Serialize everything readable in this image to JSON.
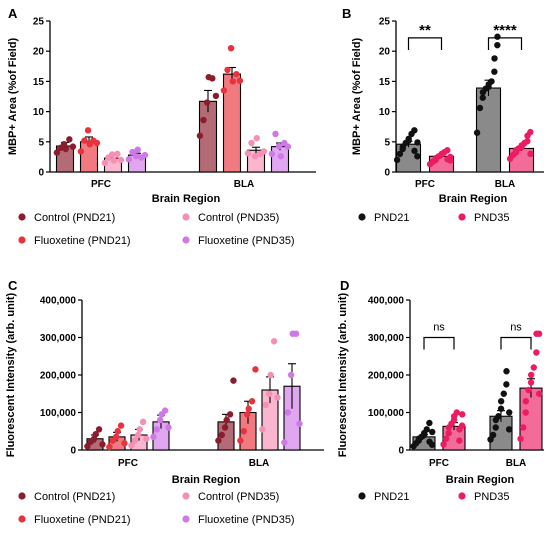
{
  "colors": {
    "control_pnd21": "#8b1c2c",
    "fluoxetine_pnd21": "#e8323c",
    "control_pnd35": "#f58fb3",
    "fluoxetine_pnd35": "#cf78e8",
    "pnd21": "#111111",
    "pnd35": "#ec1b62"
  },
  "chart_data": [
    {
      "panel": "A",
      "type": "bar",
      "categories": [
        "PFC",
        "BLA"
      ],
      "xlabel": "Brain Region",
      "ylabel": "MBP+ Area (%of Field)",
      "ylim": [
        0,
        25
      ],
      "yticks": [
        "0",
        "5",
        "10",
        "15",
        "20",
        "25"
      ],
      "series": [
        {
          "name": "Control (PND21)",
          "color_key": "control_pnd21",
          "values": [
            4.3,
            11.7
          ],
          "sem": [
            0.6,
            1.8
          ],
          "points": [
            [
              3.2,
              4.0,
              4.6,
              3.8,
              5.4,
              4.2
            ],
            [
              6.0,
              8.6,
              11.5,
              15.7,
              15.5,
              12.6
            ]
          ]
        },
        {
          "name": "Fluoxetine (PND21)",
          "color_key": "fluoxetine_pnd21",
          "values": [
            5.0,
            16.2
          ],
          "sem": [
            0.8,
            1.1
          ],
          "points": [
            [
              3.4,
              5.2,
              6.9,
              4.6,
              5.2,
              4.8
            ],
            [
              13.5,
              16.9,
              20.5,
              15.0,
              16.2,
              15.1
            ]
          ]
        },
        {
          "name": "Control (PND35)",
          "color_key": "control_pnd35",
          "values": [
            2.3,
            3.6
          ],
          "sem": [
            0.4,
            0.5
          ],
          "points": [
            [
              1.5,
              2.4,
              2.9,
              1.9,
              3.0,
              2.0
            ],
            [
              3.1,
              4.8,
              2.6,
              5.6,
              3.0,
              3.4
            ]
          ]
        },
        {
          "name": "Fluoxetine (PND35)",
          "color_key": "fluoxetine_pnd35",
          "values": [
            2.8,
            4.2
          ],
          "sem": [
            0.3,
            0.6
          ],
          "points": [
            [
              2.1,
              3.3,
              2.6,
              3.7,
              2.4,
              2.8
            ],
            [
              3.0,
              6.3,
              4.3,
              2.6,
              4.8,
              4.2
            ]
          ]
        }
      ]
    },
    {
      "panel": "B",
      "type": "bar",
      "categories": [
        "PFC",
        "BLA"
      ],
      "xlabel": "Brain Region",
      "ylabel": "MBP+ Area (%of Field)",
      "ylim": [
        0,
        25
      ],
      "yticks": [
        "0",
        "5",
        "10",
        "15",
        "20",
        "25"
      ],
      "series": [
        {
          "name": "PND21",
          "color_key": "pnd21",
          "values": [
            4.6,
            13.9
          ],
          "sem": [
            0.5,
            1.3
          ],
          "points": [
            [
              2.0,
              3.0,
              3.8,
              4.2,
              4.8,
              5.2,
              5.5,
              6.3,
              6.9,
              3.5,
              2.6,
              4.9
            ],
            [
              6.5,
              10.6,
              12.3,
              13.2,
              13.8,
              14.1,
              14.5,
              15.0,
              16.6,
              18.8,
              21.0,
              22.4
            ]
          ]
        },
        {
          "name": "PND35",
          "color_key": "pnd35",
          "values": [
            2.6,
            3.9
          ],
          "sem": [
            0.3,
            0.4
          ],
          "points": [
            [
              1.3,
              1.7,
              2.0,
              2.3,
              2.6,
              2.9,
              3.0,
              3.3,
              3.6,
              2.1,
              2.5,
              1.9
            ],
            [
              2.2,
              2.8,
              3.2,
              3.6,
              3.9,
              4.1,
              4.4,
              4.8,
              5.1,
              6.0,
              6.6,
              3.0
            ]
          ]
        }
      ],
      "annotations": [
        {
          "category_index": 0,
          "text": "**",
          "y": 22.2
        },
        {
          "category_index": 1,
          "text": "****",
          "y": 22.2
        }
      ]
    },
    {
      "panel": "C",
      "type": "bar",
      "categories": [
        "PFC",
        "BLA"
      ],
      "xlabel": "Brain Region",
      "ylabel": "Fluorescent Intensity (arb. unit)",
      "ylim": [
        0,
        400000
      ],
      "yticks": [
        "0",
        "100,000",
        "200,000",
        "300,000",
        "400,000"
      ],
      "series": [
        {
          "name": "Control (PND21)",
          "color_key": "control_pnd21",
          "values": [
            30000,
            75000
          ],
          "sem": [
            10000,
            20000
          ],
          "points": [
            [
              10000,
              22000,
              30000,
              42000,
              55000,
              15000
            ],
            [
              25000,
              40000,
              60000,
              80000,
              95000,
              185000
            ]
          ]
        },
        {
          "name": "Fluoxetine (PND21)",
          "color_key": "fluoxetine_pnd21",
          "values": [
            35000,
            100000
          ],
          "sem": [
            12000,
            30000
          ],
          "points": [
            [
              8000,
              25000,
              35000,
              50000,
              65000,
              18000
            ],
            [
              25000,
              50000,
              95000,
              110000,
              130000,
              215000
            ]
          ]
        },
        {
          "name": "Control (PND35)",
          "color_key": "control_pnd35",
          "values": [
            40000,
            160000
          ],
          "sem": [
            15000,
            35000
          ],
          "points": [
            [
              12000,
              25000,
              40000,
              55000,
              75000,
              30000
            ],
            [
              55000,
              120000,
              150000,
              200000,
              290000,
              140000
            ]
          ]
        },
        {
          "name": "Fluoxetine (PND35)",
          "color_key": "fluoxetine_pnd35",
          "values": [
            75000,
            170000
          ],
          "sem": [
            18000,
            60000
          ],
          "points": [
            [
              35000,
              55000,
              80000,
              95000,
              105000,
              60000
            ],
            [
              20000,
              100000,
              200000,
              310000,
              310000,
              70000
            ]
          ]
        }
      ]
    },
    {
      "panel": "D",
      "type": "bar",
      "categories": [
        "PFC",
        "BLA"
      ],
      "xlabel": "Brain Region",
      "ylabel": "Fluorescent Intensity (arb. unit)",
      "ylim": [
        0,
        400000
      ],
      "yticks": [
        "0",
        "100,000",
        "200,000",
        "300,000",
        "400,000"
      ],
      "series": [
        {
          "name": "PND21",
          "color_key": "pnd21",
          "values": [
            35000,
            90000
          ],
          "sem": [
            6000,
            15000
          ],
          "points": [
            [
              10000,
              18000,
              25000,
              30000,
              35000,
              40000,
              45000,
              55000,
              72000,
              22000,
              14000,
              48000
            ],
            [
              28000,
              40000,
              60000,
              80000,
              90000,
              110000,
              130000,
              150000,
              175000,
              210000,
              55000,
              100000
            ]
          ]
        },
        {
          "name": "PND35",
          "color_key": "pnd35",
          "values": [
            63000,
            165000
          ],
          "sem": [
            10000,
            25000
          ],
          "points": [
            [
              15000,
              30000,
              45000,
              60000,
              70000,
              80000,
              90000,
              100000,
              25000,
              55000,
              65000,
              95000
            ],
            [
              30000,
              60000,
              100000,
              130000,
              160000,
              180000,
              200000,
              220000,
              260000,
              310000,
              310000,
              150000
            ]
          ]
        }
      ],
      "annotations": [
        {
          "category_index": 0,
          "text": "ns",
          "y": 300000
        },
        {
          "category_index": 1,
          "text": "ns",
          "y": 300000
        }
      ]
    }
  ]
}
